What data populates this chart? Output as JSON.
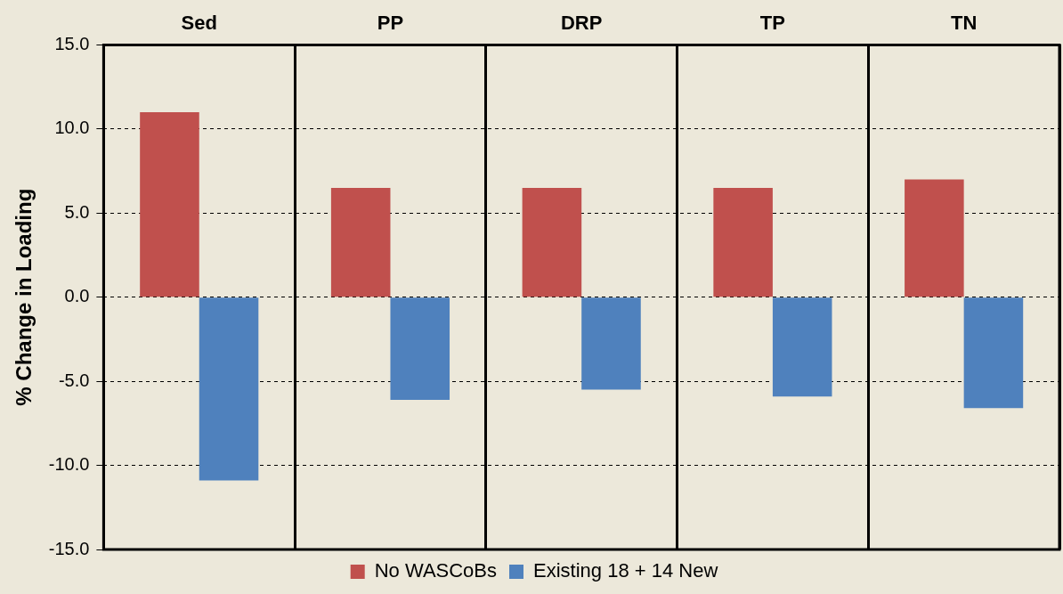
{
  "chart_data": {
    "type": "bar",
    "categories": [
      "Sed",
      "PP",
      "DRP",
      "TP",
      "TN"
    ],
    "ylabel": "% Change in Loading",
    "series": [
      {
        "name": "No WASCoBs",
        "color": "#c0504d",
        "values": [
          11.0,
          6.5,
          6.5,
          6.5,
          7.0
        ]
      },
      {
        "name": "Existing 18 + 14 New",
        "color": "#4f81bd",
        "values": [
          -10.9,
          -6.1,
          -5.5,
          -5.9,
          -6.6
        ]
      }
    ],
    "ylim": [
      -15,
      15
    ],
    "yticks": [
      {
        "value": -15,
        "label": "-15.0"
      },
      {
        "value": -10,
        "label": "-10.0"
      },
      {
        "value": -5,
        "label": "-5.0"
      },
      {
        "value": 0,
        "label": "0.0"
      },
      {
        "value": 5,
        "label": "5.0"
      },
      {
        "value": 10,
        "label": "10.0"
      },
      {
        "value": 15,
        "label": "15.0"
      }
    ],
    "grid": true,
    "legend": "bottom"
  }
}
